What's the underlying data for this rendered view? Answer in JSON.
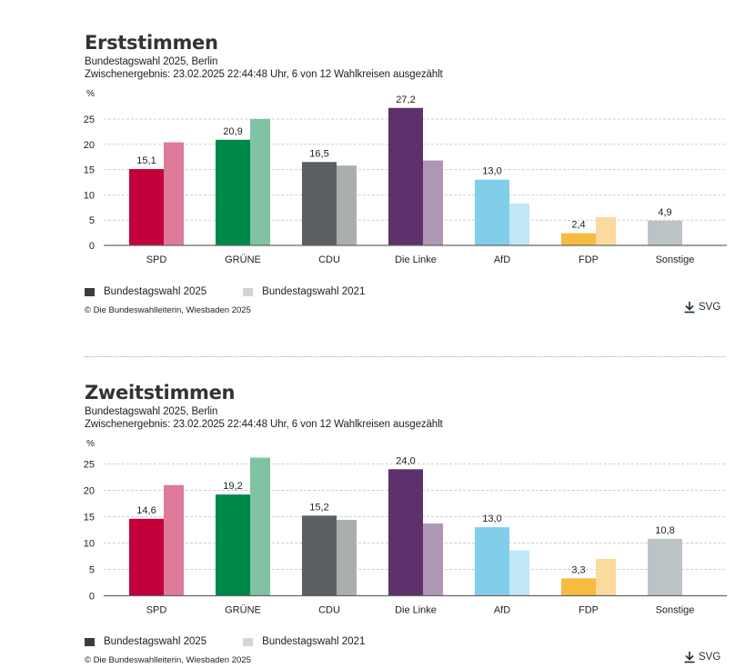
{
  "colors": {
    "SPD": [
      "#c3003b",
      "#de7b9a"
    ],
    "GRÜNE": [
      "#00874a",
      "#80c3a2"
    ],
    "CDU": [
      "#595f62",
      "#abaeae"
    ],
    "Die Linke": [
      "#5e316c",
      "#ae97b4"
    ],
    "AfD": [
      "#81ceeb",
      "#c0e7f5"
    ],
    "FDP": [
      "#f6bb3f",
      "#fadb9d"
    ],
    "Sonstige": [
      "#bcc3c6",
      "#dde1e2"
    ],
    "legend_2025": "#3c3c3c",
    "legend_2021": "#d4d4d4"
  },
  "download_label": "SVG",
  "chart_data": [
    {
      "type": "bar",
      "title": "Erststimmen",
      "subtitle": "Bundestagswahl 2025, Berlin",
      "status": "Zwischenergebnis: 23.02.2025 22:44:48 Uhr, 6 von 12 Wahlkreisen ausgezählt",
      "ylabel": "%",
      "xlabel": "",
      "ylim": [
        0,
        27.2
      ],
      "yticks": [
        0,
        5,
        10,
        15,
        20,
        25
      ],
      "grid": true,
      "categories": [
        "SPD",
        "GRÜNE",
        "CDU",
        "Die Linke",
        "AfD",
        "FDP",
        "Sonstige"
      ],
      "series": [
        {
          "name": "Bundestagswahl 2025",
          "values": [
            15.1,
            20.9,
            16.5,
            27.2,
            13.0,
            2.4,
            4.9
          ],
          "labels": [
            "15,1",
            "20,9",
            "16,5",
            "27,2",
            "13,0",
            "2,4",
            "4,9"
          ]
        },
        {
          "name": "Bundestagswahl 2021",
          "values": [
            20.4,
            25.0,
            15.8,
            16.8,
            8.3,
            5.6,
            null
          ]
        }
      ],
      "legend": [
        "Bundestagswahl 2025",
        "Bundestagswahl 2021"
      ],
      "legend_position": "bottom-left",
      "source": "© Die Bundeswahlleiterin, Wiesbaden 2025"
    },
    {
      "type": "bar",
      "title": "Zweitstimmen",
      "subtitle": "Bundestagswahl 2025, Berlin",
      "status": "Zwischenergebnis: 23.02.2025 22:44:48 Uhr, 6 von 12 Wahlkreisen ausgezählt",
      "ylabel": "%",
      "xlabel": "",
      "ylim": [
        0,
        26.2
      ],
      "yticks": [
        0,
        5,
        10,
        15,
        20,
        25
      ],
      "grid": true,
      "categories": [
        "SPD",
        "GRÜNE",
        "CDU",
        "Die Linke",
        "AfD",
        "FDP",
        "Sonstige"
      ],
      "series": [
        {
          "name": "Bundestagswahl 2025",
          "values": [
            14.6,
            19.2,
            15.2,
            24.0,
            13.0,
            3.3,
            10.8
          ],
          "labels": [
            "14,6",
            "19,2",
            "15,2",
            "24,0",
            "13,0",
            "3,3",
            "10,8"
          ]
        },
        {
          "name": "Bundestagswahl 2021",
          "values": [
            21.0,
            26.2,
            14.4,
            13.7,
            8.6,
            7.0,
            null
          ]
        }
      ],
      "legend": [
        "Bundestagswahl 2025",
        "Bundestagswahl 2021"
      ],
      "legend_position": "bottom-left",
      "source": "© Die Bundeswahlleiterin, Wiesbaden 2025"
    }
  ]
}
